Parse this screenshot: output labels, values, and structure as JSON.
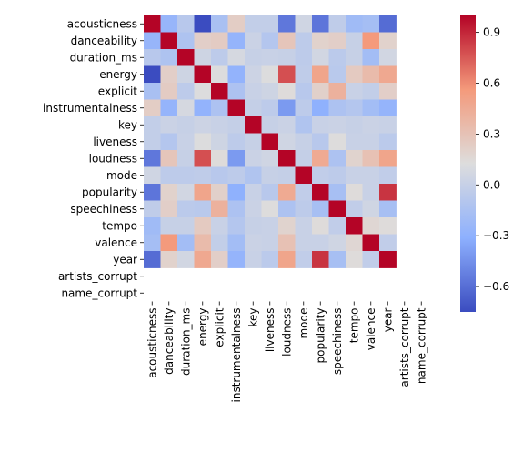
{
  "chart_data": {
    "type": "heatmap",
    "title": "",
    "xlabel": "",
    "ylabel": "",
    "labels": [
      "acousticness",
      "danceability",
      "duration_ms",
      "energy",
      "explicit",
      "instrumentalness",
      "key",
      "liveness",
      "loudness",
      "mode",
      "popularity",
      "speechiness",
      "tempo",
      "valence",
      "year",
      "artists_corrupt",
      "name_corrupt"
    ],
    "colormap": "coolwarm",
    "vmin": -0.75,
    "vmax": 1.0,
    "colorbar_ticks": [
      0.9,
      0.6,
      0.3,
      0.0,
      -0.3,
      -0.6
    ],
    "colorbar_tick_labels": [
      "0.9",
      "0.6",
      "0.3",
      "0.0",
      "−0.3",
      "−0.6"
    ],
    "missing_value_note": "artists_corrupt and name_corrupt rows/columns are empty (NaN)",
    "values": [
      [
        1.0,
        -0.26,
        -0.08,
        -0.75,
        -0.16,
        0.23,
        -0.02,
        -0.02,
        -0.56,
        0.05,
        -0.57,
        -0.04,
        -0.21,
        -0.18,
        -0.61,
        null,
        null
      ],
      [
        -0.26,
        1.0,
        -0.13,
        0.22,
        0.24,
        -0.27,
        0.02,
        -0.1,
        0.28,
        -0.05,
        0.2,
        0.22,
        -0.0,
        0.56,
        0.2,
        null,
        null
      ],
      [
        -0.08,
        -0.13,
        1.0,
        0.04,
        -0.05,
        0.08,
        -0.0,
        0.01,
        -0.0,
        -0.05,
        0.06,
        -0.06,
        -0.0,
        -0.19,
        0.06,
        null,
        null
      ],
      [
        -0.75,
        0.22,
        0.04,
        1.0,
        0.12,
        -0.28,
        0.03,
        0.12,
        0.78,
        -0.04,
        0.49,
        -0.07,
        0.25,
        0.35,
        0.47,
        null,
        null
      ],
      [
        -0.16,
        0.24,
        -0.05,
        0.12,
        1.0,
        -0.14,
        0.01,
        0.04,
        0.14,
        -0.08,
        0.21,
        0.41,
        0.01,
        -0.02,
        0.22,
        null,
        null
      ],
      [
        0.23,
        -0.27,
        0.08,
        -0.28,
        -0.14,
        1.0,
        -0.01,
        -0.05,
        -0.41,
        -0.05,
        -0.3,
        -0.14,
        -0.1,
        -0.19,
        -0.27,
        null,
        null
      ],
      [
        -0.02,
        0.02,
        -0.0,
        0.03,
        0.01,
        -0.01,
        1.0,
        0.0,
        0.02,
        -0.12,
        0.01,
        0.02,
        -0.0,
        0.02,
        0.01,
        null,
        null
      ],
      [
        -0.02,
        -0.1,
        0.01,
        0.12,
        0.04,
        -0.05,
        0.0,
        1.0,
        0.05,
        0.0,
        -0.08,
        0.13,
        0.01,
        0.01,
        -0.06,
        null,
        null
      ],
      [
        -0.56,
        0.28,
        -0.0,
        0.78,
        0.14,
        -0.41,
        0.02,
        0.05,
        1.0,
        -0.01,
        0.46,
        -0.14,
        0.19,
        0.31,
        0.49,
        null,
        null
      ],
      [
        0.05,
        -0.05,
        -0.05,
        -0.04,
        -0.08,
        -0.05,
        -0.12,
        0.0,
        -0.01,
        1.0,
        -0.03,
        -0.05,
        0.01,
        0.01,
        -0.03,
        null,
        null
      ],
      [
        -0.57,
        0.2,
        0.06,
        0.49,
        0.21,
        -0.3,
        0.01,
        -0.08,
        0.46,
        -0.03,
        1.0,
        -0.17,
        0.14,
        0.01,
        0.86,
        null,
        null
      ],
      [
        -0.04,
        0.22,
        -0.06,
        -0.07,
        0.41,
        -0.14,
        0.02,
        0.13,
        -0.14,
        -0.05,
        -0.17,
        1.0,
        -0.03,
        0.05,
        -0.17,
        null,
        null
      ],
      [
        -0.21,
        -0.0,
        -0.0,
        0.25,
        0.01,
        -0.1,
        -0.0,
        0.01,
        0.19,
        0.01,
        0.14,
        -0.03,
        1.0,
        0.17,
        0.14,
        null,
        null
      ],
      [
        -0.18,
        0.56,
        -0.19,
        0.35,
        -0.02,
        -0.19,
        0.02,
        0.01,
        0.31,
        0.01,
        0.01,
        0.05,
        0.17,
        1.0,
        -0.03,
        null,
        null
      ],
      [
        -0.61,
        0.2,
        0.06,
        0.47,
        0.22,
        -0.27,
        0.01,
        -0.06,
        0.49,
        -0.03,
        0.86,
        -0.17,
        0.14,
        -0.03,
        1.0,
        null,
        null
      ],
      [
        null,
        null,
        null,
        null,
        null,
        null,
        null,
        null,
        null,
        null,
        null,
        null,
        null,
        null,
        null,
        null,
        null
      ],
      [
        null,
        null,
        null,
        null,
        null,
        null,
        null,
        null,
        null,
        null,
        null,
        null,
        null,
        null,
        null,
        null,
        null
      ]
    ]
  }
}
